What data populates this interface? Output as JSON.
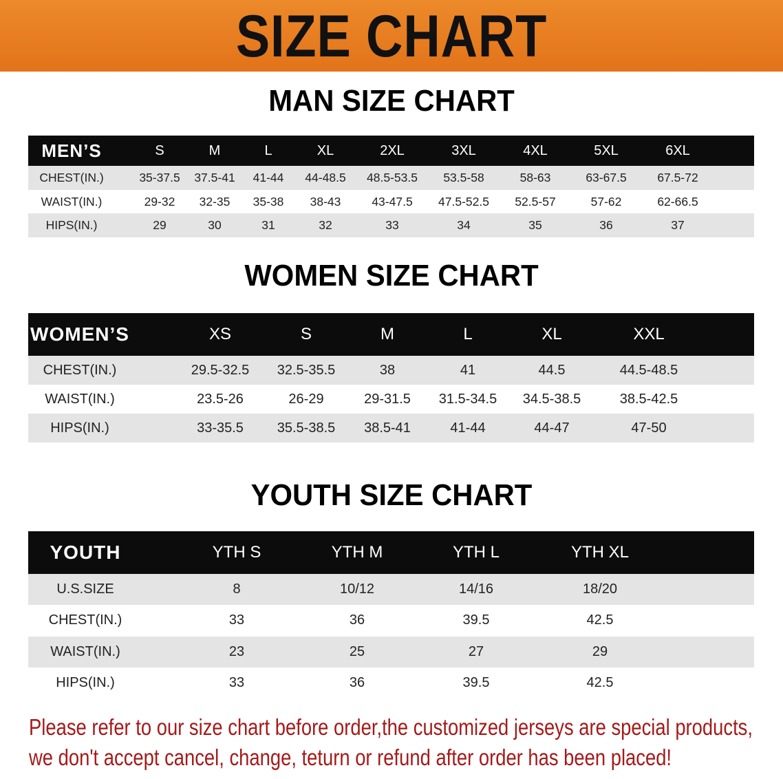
{
  "banner": {
    "title": "SIZE CHART",
    "color": "#e8801f"
  },
  "men": {
    "title": "MAN SIZE CHART",
    "header": [
      "MEN’S",
      "S",
      "M",
      "L",
      "XL",
      "2XL",
      "3XL",
      "4XL",
      "5XL",
      "6XL"
    ],
    "rows": [
      [
        "CHEST(IN.)",
        "35-37.5",
        "37.5-41",
        "41-44",
        "44-48.5",
        "48.5-53.5",
        "53.5-58",
        "58-63",
        "63-67.5",
        "67.5-72"
      ],
      [
        "WAIST(IN.)",
        "29-32",
        "32-35",
        "35-38",
        "38-43",
        "43-47.5",
        "47.5-52.5",
        "52.5-57",
        "57-62",
        "62-66.5"
      ],
      [
        "HIPS(IN.)",
        "29",
        "30",
        "31",
        "32",
        "33",
        "34",
        "35",
        "36",
        "37"
      ]
    ]
  },
  "women": {
    "title": "WOMEN SIZE CHART",
    "header": [
      "WOMEN’S",
      "XS",
      "S",
      "M",
      "L",
      "XL",
      "XXL"
    ],
    "rows": [
      [
        "CHEST(IN.)",
        "29.5-32.5",
        "32.5-35.5",
        "38",
        "41",
        "44.5",
        "44.5-48.5"
      ],
      [
        "WAIST(IN.)",
        "23.5-26",
        "26-29",
        "29-31.5",
        "31.5-34.5",
        "34.5-38.5",
        "38.5-42.5"
      ],
      [
        "HIPS(IN.)",
        "33-35.5",
        "35.5-38.5",
        "38.5-41",
        "41-44",
        "44-47",
        "47-50"
      ]
    ]
  },
  "youth": {
    "title": "YOUTH SIZE CHART",
    "header": [
      "YOUTH",
      "YTH S",
      "YTH M",
      "YTH L",
      "YTH XL"
    ],
    "rows": [
      [
        "U.S.SIZE",
        "8",
        "10/12",
        "14/16",
        "18/20"
      ],
      [
        "CHEST(IN.)",
        "33",
        "36",
        "39.5",
        "42.5"
      ],
      [
        "WAIST(IN.)",
        "23",
        "25",
        "27",
        "29"
      ],
      [
        "HIPS(IN.)",
        "33",
        "36",
        "39.5",
        "42.5"
      ]
    ]
  },
  "footer": {
    "line1": "Please refer to our size chart before order,the customized jerseys are special products,",
    "line2": "we don't accept cancel, change, teturn or refund after order has been placed!",
    "color": "#a51a1a"
  }
}
